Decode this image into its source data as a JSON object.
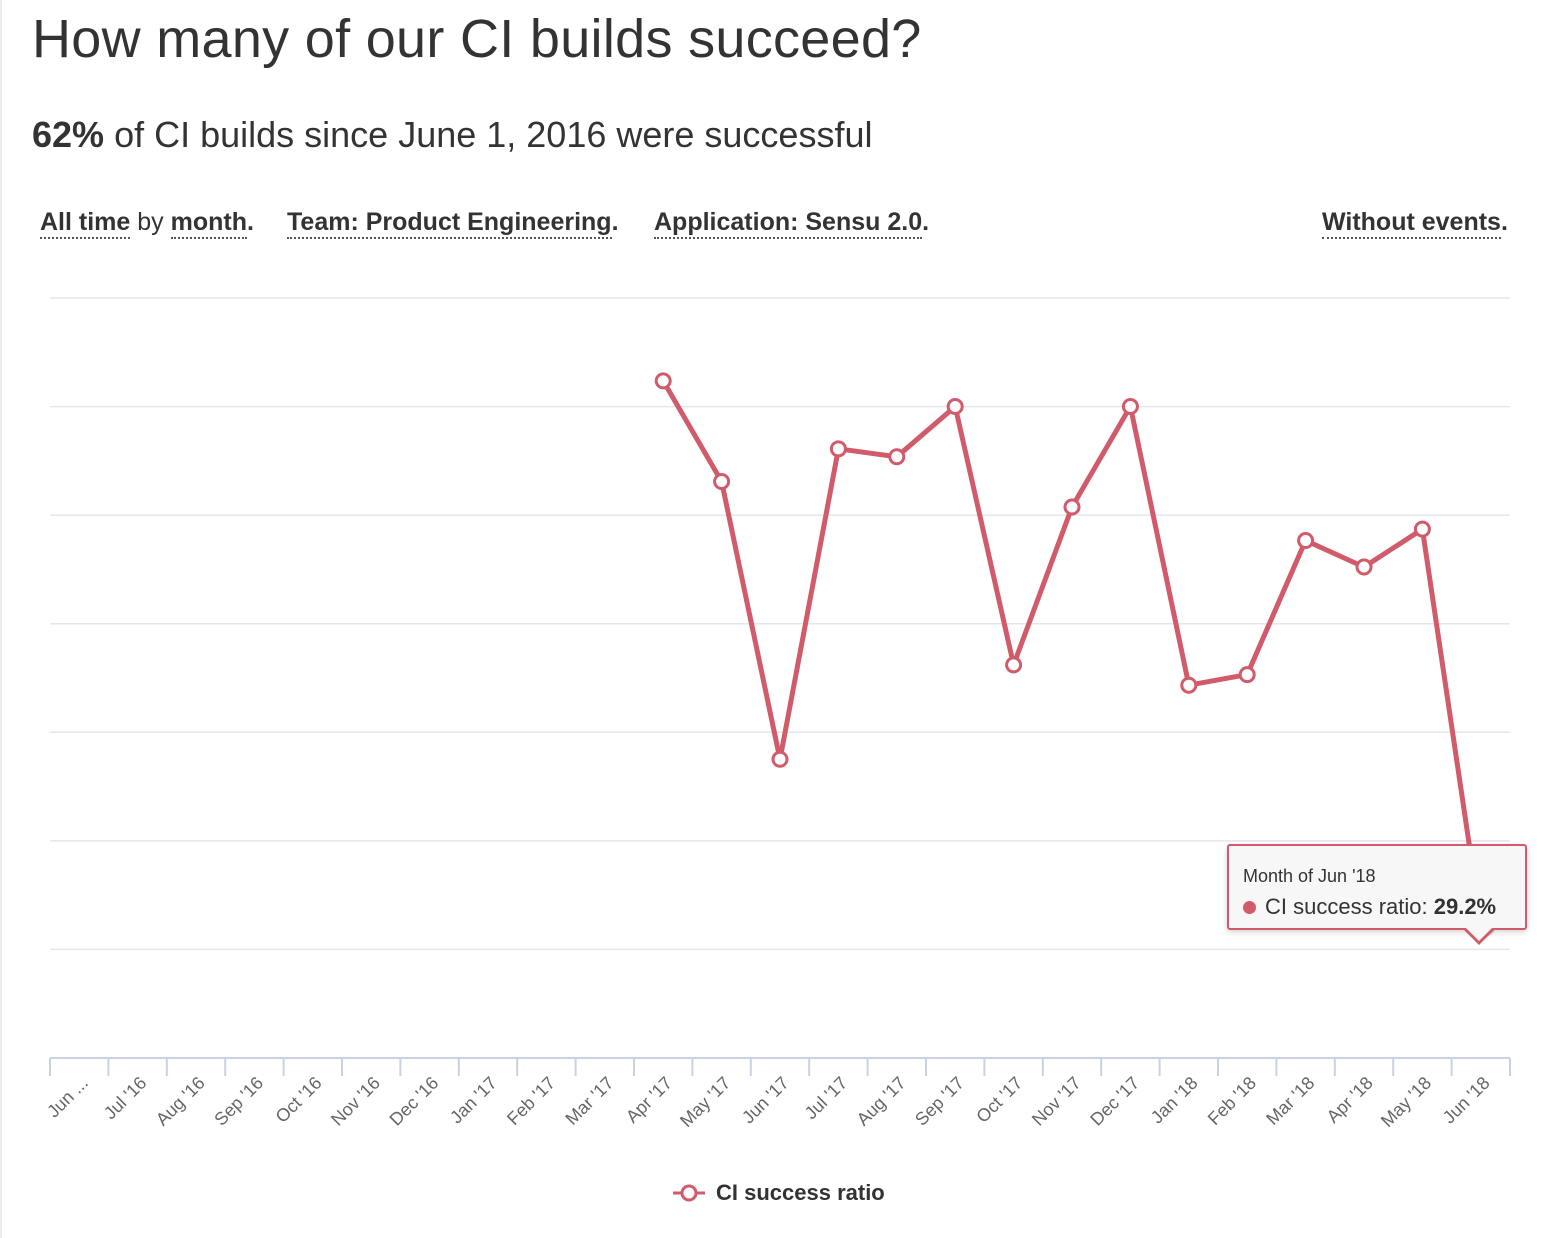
{
  "header": {
    "title": "How many of our CI builds succeed?",
    "summary_value": "62%",
    "summary_text": " of CI builds since June 1, 2016 were successful"
  },
  "filters": {
    "time_range": "All time",
    "by_word": "by",
    "granularity": "month",
    "team": "Team: Product Engineering",
    "application": "Application: Sensu 2.0",
    "events": "Without events"
  },
  "tooltip": {
    "title": "Month of Jun '18",
    "series_label": "CI success ratio: ",
    "value": "29.2%"
  },
  "legend": {
    "label": "CI success ratio"
  },
  "colors": {
    "series": "#d15b6a",
    "grid": "#e3e6ec",
    "axis": "#c9d2e3",
    "tick_label": "#666666"
  },
  "chart_data": {
    "type": "line",
    "title": "",
    "xlabel": "",
    "ylabel": "",
    "y_axis_labels_visible": false,
    "gridlines": 7,
    "categories": [
      "Jun ...",
      "Jul '16",
      "Aug '16",
      "Sep '16",
      "Oct '16",
      "Nov '16",
      "Dec '16",
      "Jan '17",
      "Feb '17",
      "Mar '17",
      "Apr '17",
      "May '17",
      "Jun '17",
      "Jul '17",
      "Aug '17",
      "Sep '17",
      "Oct '17",
      "Nov '17",
      "Dec '17",
      "Jan '18",
      "Feb '18",
      "Mar '18",
      "Apr '18",
      "May '18",
      "Jun '18"
    ],
    "series": [
      {
        "name": "CI success ratio",
        "values": [
          null,
          null,
          null,
          null,
          null,
          null,
          null,
          null,
          null,
          null,
          90.6,
          79.2,
          47.7,
          82.9,
          82.0,
          87.7,
          58.4,
          76.3,
          87.7,
          56.1,
          57.3,
          72.5,
          69.5,
          73.8,
          29.2
        ]
      }
    ],
    "highlighted": {
      "category": "Jun '18",
      "value": 29.2
    },
    "legend_position": "bottom"
  }
}
